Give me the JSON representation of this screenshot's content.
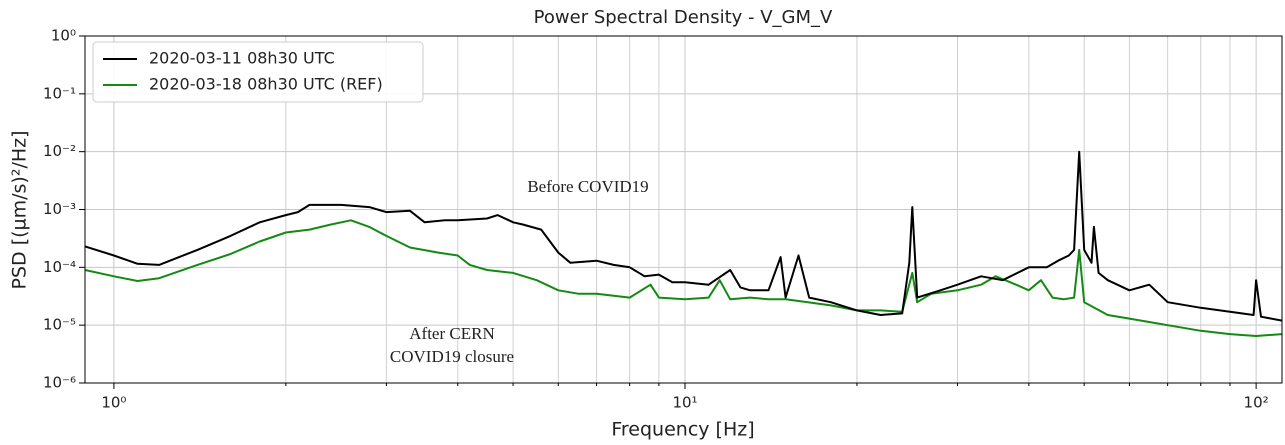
{
  "chart_data": {
    "type": "line",
    "title": "Power Spectral Density - V_GM_V",
    "xlabel": "Frequency [Hz]",
    "ylabel": "PSD [(µm/s)²/Hz]",
    "xscale": "log",
    "yscale": "log",
    "grid": true,
    "legend": "upper left",
    "xlim": [
      0.89,
      111
    ],
    "ylim": [
      1e-06,
      1
    ],
    "xticks": [
      {
        "value": 1,
        "label": "10⁰"
      },
      {
        "value": 10,
        "label": "10¹"
      },
      {
        "value": 100,
        "label": "10²"
      }
    ],
    "xminorticks": [
      2,
      3,
      4,
      5,
      6,
      7,
      8,
      9,
      20,
      30,
      40,
      50,
      60,
      70,
      80,
      90
    ],
    "yticks": [
      {
        "value": 1e-06,
        "label": "10⁻⁶"
      },
      {
        "value": 1e-05,
        "label": "10⁻⁵"
      },
      {
        "value": 0.0001,
        "label": "10⁻⁴"
      },
      {
        "value": 0.001,
        "label": "10⁻³"
      },
      {
        "value": 0.01,
        "label": "10⁻²"
      },
      {
        "value": 0.1,
        "label": "10⁻¹"
      },
      {
        "value": 1,
        "label": "10⁰"
      }
    ],
    "annotations": [
      "Before COVID19",
      "After CERN",
      "COVID19 closure"
    ],
    "series": [
      {
        "name": "2020-03-11 08h30 UTC",
        "color": "#000000",
        "x": [
          0.89,
          1.0,
          1.1,
          1.2,
          1.4,
          1.6,
          1.8,
          2.0,
          2.1,
          2.2,
          2.5,
          2.8,
          3.0,
          3.3,
          3.5,
          3.8,
          4.0,
          4.5,
          4.7,
          5.0,
          5.2,
          5.6,
          6.0,
          6.3,
          7.0,
          7.5,
          8.0,
          8.5,
          9.0,
          9.5,
          10,
          11,
          12,
          12.5,
          13,
          14,
          14.7,
          15,
          15.8,
          16.5,
          18,
          20,
          22,
          24,
          24.7,
          25,
          25.5,
          28,
          30,
          33,
          36,
          40,
          43,
          45,
          47,
          48,
          49,
          50,
          51.5,
          52,
          53,
          55,
          60,
          65,
          70,
          80,
          90,
          99,
          100,
          102,
          111
        ],
        "values": [
          0.00023,
          0.00016,
          0.000115,
          0.00011,
          0.0002,
          0.00035,
          0.0006,
          0.0008,
          0.0009,
          0.0012,
          0.0012,
          0.0011,
          0.0009,
          0.00095,
          0.0006,
          0.00065,
          0.00065,
          0.0007,
          0.0008,
          0.0006,
          0.00055,
          0.00045,
          0.00018,
          0.00012,
          0.00013,
          0.00011,
          0.0001,
          7e-05,
          7.5e-05,
          5.5e-05,
          5.5e-05,
          5e-05,
          9e-05,
          4.5e-05,
          4e-05,
          4e-05,
          0.00015,
          3e-05,
          0.00016,
          3e-05,
          2.5e-05,
          1.8e-05,
          1.5e-05,
          1.6e-05,
          0.00012,
          0.0011,
          3e-05,
          4e-05,
          5e-05,
          7e-05,
          6e-05,
          0.0001,
          0.0001,
          0.00013,
          0.00016,
          0.0002,
          0.01,
          0.0002,
          0.00012,
          0.0005,
          8e-05,
          6e-05,
          4e-05,
          5e-05,
          2.5e-05,
          2e-05,
          1.7e-05,
          1.5e-05,
          6e-05,
          1.4e-05,
          1.2e-05
        ]
      },
      {
        "name": "2020-03-18 08h30 UTC (REF)",
        "color": "#138a13",
        "x": [
          0.89,
          1.0,
          1.1,
          1.2,
          1.4,
          1.6,
          1.8,
          2.0,
          2.2,
          2.4,
          2.6,
          2.8,
          3.0,
          3.3,
          3.7,
          4.0,
          4.2,
          4.5,
          5.0,
          5.5,
          6.0,
          6.5,
          7.0,
          8.0,
          8.7,
          9.0,
          10,
          11,
          11.5,
          12,
          13,
          14,
          15,
          18,
          20,
          22,
          24,
          25,
          25.5,
          27,
          30,
          33,
          35,
          38,
          40,
          42,
          44,
          46,
          48,
          49,
          50,
          55,
          60,
          70,
          80,
          90,
          100,
          111
        ],
        "values": [
          9e-05,
          7e-05,
          5.8e-05,
          6.5e-05,
          0.00011,
          0.00017,
          0.00028,
          0.0004,
          0.00045,
          0.00055,
          0.00065,
          0.0005,
          0.00035,
          0.00022,
          0.00018,
          0.00016,
          0.00011,
          9e-05,
          8e-05,
          6e-05,
          4e-05,
          3.5e-05,
          3.5e-05,
          3e-05,
          5e-05,
          3e-05,
          2.8e-05,
          3e-05,
          6e-05,
          2.8e-05,
          3e-05,
          2.8e-05,
          2.8e-05,
          2.2e-05,
          1.8e-05,
          1.8e-05,
          1.7e-05,
          8e-05,
          2.5e-05,
          3.5e-05,
          4e-05,
          5e-05,
          7e-05,
          5e-05,
          4e-05,
          6e-05,
          3e-05,
          2.8e-05,
          3e-05,
          0.0002,
          2.5e-05,
          1.5e-05,
          1.3e-05,
          1e-05,
          8e-06,
          7e-06,
          6.5e-06,
          7e-06
        ]
      }
    ]
  }
}
